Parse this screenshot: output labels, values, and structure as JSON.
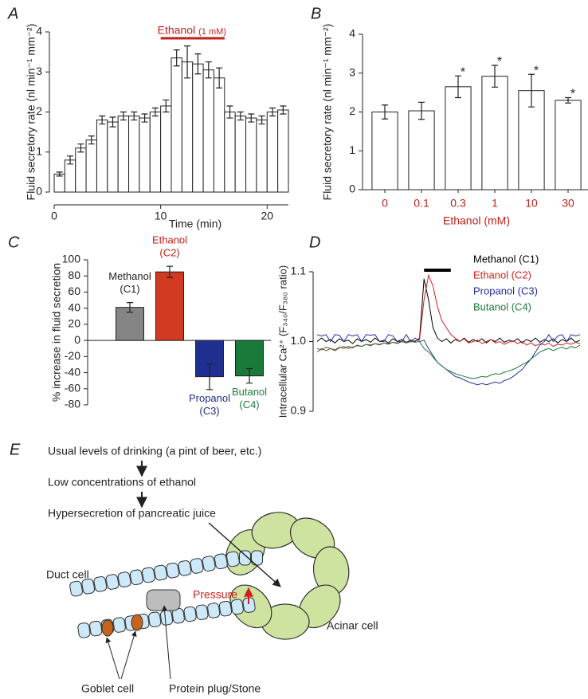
{
  "chart_data": [
    {
      "panel": "A",
      "type": "bar",
      "x": [
        0.5,
        1.5,
        2.5,
        3.5,
        4.5,
        5.5,
        6.5,
        7.5,
        8.5,
        9.5,
        10.5,
        11.5,
        12.5,
        13.5,
        14.5,
        15.5,
        16.5,
        17.5,
        18.5,
        19.5,
        20.5,
        21.5
      ],
      "values": [
        0.45,
        0.8,
        1.1,
        1.3,
        1.8,
        1.75,
        1.9,
        1.9,
        1.85,
        2.0,
        2.15,
        3.35,
        3.25,
        3.2,
        3.05,
        2.85,
        2.0,
        1.9,
        1.85,
        1.8,
        2.0,
        2.05
      ],
      "errors": [
        0.05,
        0.1,
        0.1,
        0.1,
        0.1,
        0.12,
        0.1,
        0.1,
        0.1,
        0.1,
        0.15,
        0.2,
        0.4,
        0.25,
        0.2,
        0.25,
        0.15,
        0.1,
        0.1,
        0.1,
        0.1,
        0.1
      ],
      "color": "#ffffff",
      "xlim": [
        0,
        22
      ],
      "xticks": [
        0,
        10,
        20
      ],
      "ylim": [
        0,
        4
      ],
      "yticks": [
        0,
        1,
        2,
        3,
        4
      ],
      "xlabel": "Time (min)",
      "ylabel": "Fluid secretory rate (nl min⁻¹ mm⁻²)",
      "treatment": {
        "label": "Ethanol",
        "dose": "(1 mM)",
        "span": [
          10,
          16
        ],
        "color": "#c0201a"
      }
    },
    {
      "panel": "B",
      "type": "bar",
      "categories": [
        "0",
        "0.1",
        "0.3",
        "1",
        "10",
        "30"
      ],
      "category_color": "#c0201a",
      "values": [
        2.0,
        2.03,
        2.65,
        2.92,
        2.55,
        2.3
      ],
      "errors": [
        0.18,
        0.22,
        0.28,
        0.28,
        0.42,
        0.07
      ],
      "annotations": [
        null,
        null,
        "*",
        "*",
        "*",
        "*"
      ],
      "color": "#ffffff",
      "ylim": [
        0,
        4
      ],
      "yticks": [
        0,
        1,
        2,
        3,
        4
      ],
      "xlabel": "Ethanol (mM)",
      "xlabel_color": "#c0201a",
      "ylabel": "Fluid secretory rate (nl min⁻¹ mm⁻²)"
    },
    {
      "panel": "C",
      "type": "bar",
      "categories": [
        [
          "Methanol",
          "(C1)"
        ],
        [
          "Ethanol",
          "(C2)"
        ],
        [
          "Propanol",
          "(C3)"
        ],
        [
          "Butanol",
          "(C4)"
        ]
      ],
      "values": [
        41,
        85,
        -45,
        -44
      ],
      "errors": [
        6,
        7,
        16,
        9
      ],
      "colors": [
        "#858585",
        "#d23a22",
        "#1f2f8f",
        "#1a7a3a"
      ],
      "label_colors": [
        "#222222",
        "#c0201a",
        "#1f2f8f",
        "#1a7a3a"
      ],
      "ylim": [
        -80,
        100
      ],
      "yticks": [
        -80,
        -60,
        -40,
        -20,
        0,
        20,
        40,
        60,
        80,
        100
      ],
      "ylabel": "% increase in fluid secretion"
    },
    {
      "panel": "D",
      "type": "line",
      "series": [
        {
          "name": "Methanol (C1)",
          "color": "#000000",
          "values": [
            1.0,
            1.005,
            1.0,
            1.003,
            0.998,
            1.004,
            1.0,
            1.002,
            0.997,
            1.004,
            1.0,
            1.003,
            0.999,
            1.005,
            1.0,
            1.002,
            0.998,
            1.004,
            1.0,
            1.003,
            0.999,
            1.002,
            1.0,
            1.005,
            1.09,
            1.06,
            1.02,
            1.005,
            1.0,
            1.004,
            0.998,
            1.003,
            1.0,
            1.005,
            0.999,
            1.003,
            1.0,
            1.004,
            0.998,
            1.003,
            1.0,
            1.005,
            0.999,
            1.002,
            1.0,
            1.004,
            0.998,
            1.003,
            1.0,
            1.005,
            0.999,
            1.003,
            1.0,
            1.004,
            0.998,
            1.003,
            1.0,
            1.005,
            0.999,
            1.002
          ]
        },
        {
          "name": "Ethanol (C2)",
          "color": "#d0201a",
          "values": [
            0.99,
            0.988,
            0.992,
            0.99,
            0.987,
            0.991,
            0.993,
            0.99,
            0.992,
            0.994,
            0.993,
            0.996,
            0.995,
            0.997,
            0.996,
            0.998,
            0.997,
            0.999,
            0.998,
            1.0,
            0.999,
            1.0,
            1.001,
            1.003,
            1.06,
            1.095,
            1.08,
            1.05,
            1.03,
            1.02,
            1.01,
            1.005,
            1.0,
            1.004,
            0.998,
            1.0,
            1.002,
            0.997,
            1.0,
            1.003,
            0.998,
            1.0,
            0.996,
            0.999,
            1.001,
            0.997,
            1.0,
            0.995,
            0.998,
            0.994,
            0.997,
            0.995,
            0.998,
            0.993,
            0.996,
            0.995,
            0.998,
            0.996,
            0.999,
            0.997
          ]
        },
        {
          "name": "Propanol (C3)",
          "color": "#1f2f9f",
          "values": [
            1.01,
            1.008,
            1.01,
            1.0,
            1.01,
            1.009,
            1.0,
            1.01,
            1.008,
            1.01,
            1.0,
            1.01,
            1.009,
            1.01,
            1.0,
            1.0,
            1.01,
            1.008,
            1.0,
            1.0,
            1.01,
            1.0,
            1.005,
            1.0,
            1.002,
            0.99,
            0.98,
            0.97,
            0.965,
            0.96,
            0.955,
            0.95,
            0.948,
            0.945,
            0.942,
            0.94,
            0.938,
            0.94,
            0.938,
            0.94,
            0.942,
            0.94,
            0.944,
            0.946,
            0.95,
            0.955,
            0.96,
            0.968,
            0.975,
            0.985,
            0.995,
            1.0,
            1.01,
            1.0,
            1.008,
            1.01,
            1.0,
            1.01,
            1.008,
            1.01
          ]
        },
        {
          "name": "Butanol (C4)",
          "color": "#1a7a3a",
          "values": [
            0.985,
            0.99,
            0.987,
            0.99,
            0.988,
            0.992,
            0.99,
            0.993,
            0.991,
            0.995,
            0.993,
            0.996,
            0.994,
            0.997,
            0.995,
            0.998,
            0.996,
            0.999,
            0.997,
            1.0,
            0.998,
            1.0,
            0.999,
            1.0,
            0.99,
            0.985,
            0.978,
            0.97,
            0.965,
            0.96,
            0.957,
            0.954,
            0.952,
            0.95,
            0.948,
            0.947,
            0.948,
            0.95,
            0.949,
            0.952,
            0.954,
            0.953,
            0.956,
            0.958,
            0.96,
            0.963,
            0.967,
            0.97,
            0.975,
            0.98,
            0.985,
            0.988,
            0.99,
            0.987,
            0.99,
            0.992,
            0.989,
            0.993,
            0.991,
            0.995
          ]
        }
      ],
      "ylim": [
        0.9,
        1.1
      ],
      "yticks": [
        0.9,
        {
          "value": 1,
          "label": "1.0"
        },
        1.1
      ],
      "ylabel": "Intracellular Ca²⁺ (F₃₄₀/F₃₈₀ ratio)",
      "stimulus_span": [
        24,
        30
      ]
    }
  ],
  "diagram": {
    "panel": "E",
    "steps": [
      "Usual levels of drinking (a pint of beer, etc.)",
      "Low concentrations of ethanol",
      "Hypersecretion of pancreatic juice"
    ],
    "labels": {
      "duct_cell": "Duct cell",
      "pressure": "Pressure",
      "acinar_cell": "Acinar cell",
      "goblet_cell": "Goblet cell",
      "plug": "Protein plug/Stone"
    }
  }
}
